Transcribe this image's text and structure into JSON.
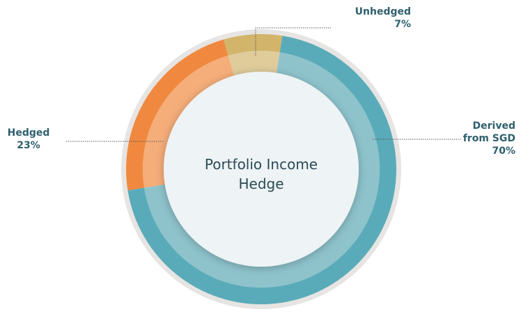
{
  "chart_data": {
    "type": "donut",
    "title": "Portfolio Income Hedge",
    "categories": [
      "Derived from SGD",
      "Hedged",
      "Unhedged"
    ],
    "values": [
      70,
      23,
      7
    ],
    "value_labels": [
      "70%",
      "23%",
      "7%"
    ],
    "colors": [
      "#5aabb9",
      "#f0893f",
      "#d2b56b"
    ],
    "inner_colors": [
      "#8ec3cc",
      "#f5ad7a",
      "#e0cc9b"
    ]
  }
}
